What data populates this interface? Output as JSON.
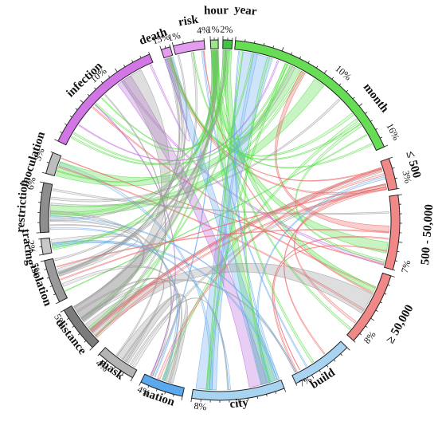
{
  "chart_data": {
    "type": "chord",
    "segments": [
      {
        "id": "month",
        "label": "month",
        "color": "#66dd55",
        "percent_labels": [
          "10%",
          "16%"
        ]
      },
      {
        "id": "le500",
        "label": "≤ 500",
        "color": "#f08888",
        "percent_labels": [
          "3%"
        ]
      },
      {
        "id": "500_50000",
        "label": "500 - 50,000",
        "color": "#f08888",
        "percent_labels": [
          "7%"
        ]
      },
      {
        "id": "ge50000",
        "label": "≥ 50,000",
        "color": "#f08888",
        "percent_labels": [
          "8%"
        ]
      },
      {
        "id": "build",
        "label": "build",
        "color": "#a8d4f2",
        "percent_labels": [
          "7%"
        ]
      },
      {
        "id": "city",
        "label": "city",
        "color": "#a8d4f2",
        "percent_labels": [
          "8%"
        ]
      },
      {
        "id": "nation",
        "label": "nation",
        "color": "#5aa8ee",
        "percent_labels": [
          "4%"
        ]
      },
      {
        "id": "mask",
        "label": "mask",
        "color": "#b4b4b4",
        "percent_labels": [
          "4%"
        ]
      },
      {
        "id": "distance",
        "label": "distance",
        "color": "#7c7c7c",
        "percent_labels": [
          "5%"
        ]
      },
      {
        "id": "isolation",
        "label": "isolation",
        "color": "#9a9a9a",
        "percent_labels": [
          "5%"
        ]
      },
      {
        "id": "tracing",
        "label": "tracing",
        "color": "#c8c8c8",
        "percent_labels": [
          "2%"
        ]
      },
      {
        "id": "restriction",
        "label": "restriction",
        "color": "#8e8e8e",
        "percent_labels": [
          "6%"
        ]
      },
      {
        "id": "inoculation",
        "label": "inoculation",
        "color": "#bdbdbd",
        "percent_labels": [
          "3%"
        ]
      },
      {
        "id": "infection",
        "label": "infection",
        "color": "#d276e6",
        "percent_labels": [
          "10%"
        ]
      },
      {
        "id": "death",
        "label": "death",
        "color": "#e39cf0",
        "percent_labels": [
          "15%"
        ]
      },
      {
        "id": "risk",
        "label": "risk",
        "color": "#e39cf0",
        "percent_labels": [
          "1%",
          "4%"
        ]
      },
      {
        "id": "hour",
        "label": "hour",
        "color": "#9ae88a",
        "percent_labels": [
          "1%"
        ]
      },
      {
        "id": "year",
        "label": "year",
        "color": "#44c244",
        "percent_labels": [
          "2%"
        ]
      }
    ],
    "ribbon_colors": {
      "time": "#55dd44",
      "population": "#ee6666",
      "area": "#66aaee",
      "measure": "#999999",
      "health": "#bb66dd"
    }
  }
}
